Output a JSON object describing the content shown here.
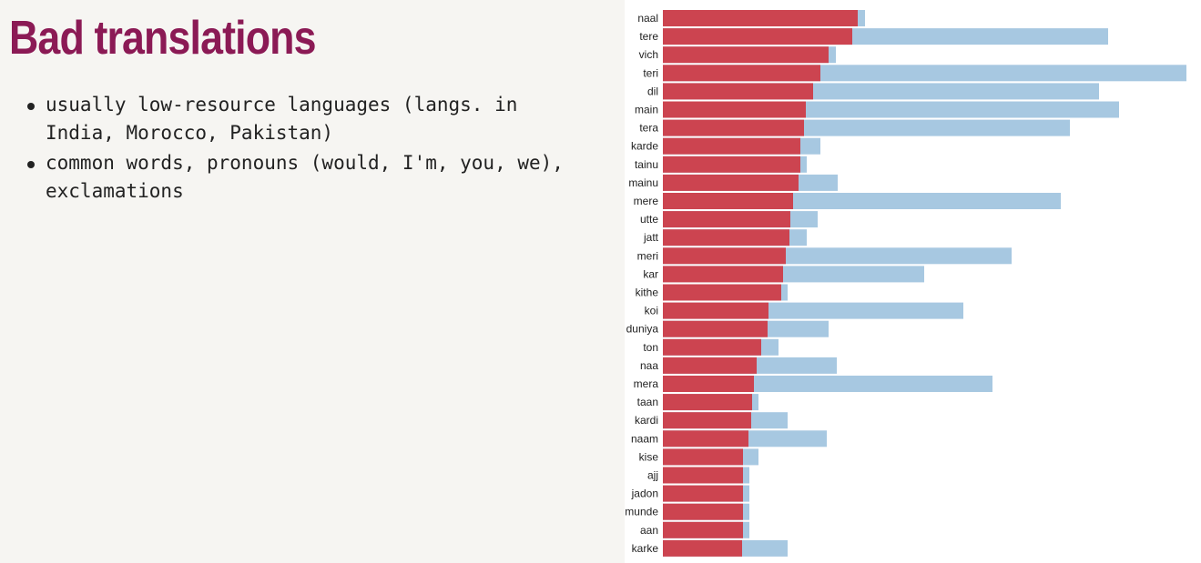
{
  "slide": {
    "title": "Bad translations",
    "bullets": [
      "usually low-resource languages (langs. in India, Morocco, Pakistan)",
      "common words, pronouns (would, I'm, you, we), exclamations"
    ]
  },
  "colors": {
    "title": "#8b1a55",
    "series_red": "#cc4450",
    "series_blue": "#a7c8e1"
  },
  "chart_data": {
    "type": "bar",
    "orientation": "horizontal",
    "stacked": false,
    "categories": [
      "naal",
      "tere",
      "vich",
      "teri",
      "dil",
      "main",
      "tera",
      "karde",
      "tainu",
      "mainu",
      "mere",
      "utte",
      "jatt",
      "meri",
      "kar",
      "kithe",
      "koi",
      "duniya",
      "ton",
      "naa",
      "mera",
      "taan",
      "kardi",
      "naam",
      "kise",
      "ajj",
      "jadon",
      "munde",
      "aan",
      "karke"
    ],
    "series": [
      {
        "values": [
          214,
          208,
          182,
          173,
          165,
          157,
          155,
          151,
          151,
          149,
          143,
          140,
          139,
          135,
          132,
          130,
          116,
          115,
          108,
          103,
          100,
          98,
          97,
          94,
          88,
          88,
          88,
          88,
          88,
          87
        ],
        "color": "#cc4450"
      },
      {
        "values": [
          222,
          489,
          190,
          575,
          479,
          501,
          447,
          173,
          158,
          192,
          437,
          170,
          158,
          383,
          287,
          137,
          330,
          182,
          127,
          191,
          362,
          105,
          137,
          180,
          105,
          95,
          95,
          95,
          95,
          137
        ],
        "color": "#a7c8e1"
      }
    ],
    "xlim": [
      0,
      580
    ],
    "grid": false,
    "legend": "none"
  }
}
